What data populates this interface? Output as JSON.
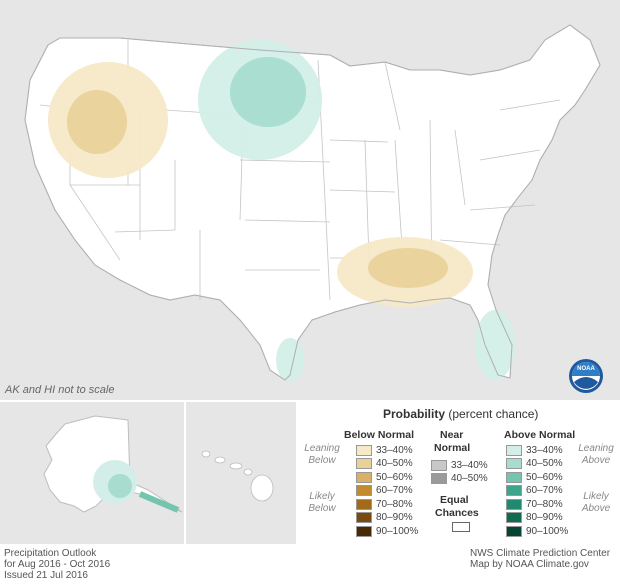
{
  "map": {
    "scale_note": "AK and HI not to scale",
    "noaa_logo_text": "NOAA"
  },
  "legend": {
    "title_bold": "Probability",
    "title_rest": "(percent chance)",
    "below": {
      "header": "Below Normal",
      "leaning": "Leaning Below",
      "likely": "Likely Below",
      "rows": [
        {
          "label": "33–40%",
          "color": "#f6e9c8"
        },
        {
          "label": "40–50%",
          "color": "#e9d29a"
        },
        {
          "label": "50–60%",
          "color": "#d9b064"
        },
        {
          "label": "60–70%",
          "color": "#c48a2e"
        },
        {
          "label": "70–80%",
          "color": "#a46a1c"
        },
        {
          "label": "80–90%",
          "color": "#7a4a10"
        },
        {
          "label": "90–100%",
          "color": "#4a2a06"
        }
      ]
    },
    "near": {
      "header1": "Near",
      "header2": "Normal",
      "rows": [
        {
          "label": "33–40%",
          "color": "#c8c8c8"
        },
        {
          "label": "40–50%",
          "color": "#9a9a9a"
        }
      ]
    },
    "equal": {
      "line1": "Equal",
      "line2": "Chances",
      "color": "#ffffff"
    },
    "above": {
      "header": "Above Normal",
      "leaning": "Leaning Above",
      "likely": "Likely Above",
      "rows": [
        {
          "label": "33–40%",
          "color": "#d3eee8"
        },
        {
          "label": "40–50%",
          "color": "#a7dccf"
        },
        {
          "label": "50–60%",
          "color": "#74c4b0"
        },
        {
          "label": "60–70%",
          "color": "#3ea58d"
        },
        {
          "label": "70–80%",
          "color": "#1f8a70"
        },
        {
          "label": "80–90%",
          "color": "#0f6a52"
        },
        {
          "label": "90–100%",
          "color": "#064534"
        }
      ]
    }
  },
  "footer": {
    "left_line1": "Precipitation Outlook",
    "left_line2": "for Aug 2016 - Oct 2016",
    "left_line3": "Issued 21 Jul 2016",
    "right_line1": "NWS Climate Prediction Center",
    "right_line2": "Map by NOAA Climate.gov"
  }
}
